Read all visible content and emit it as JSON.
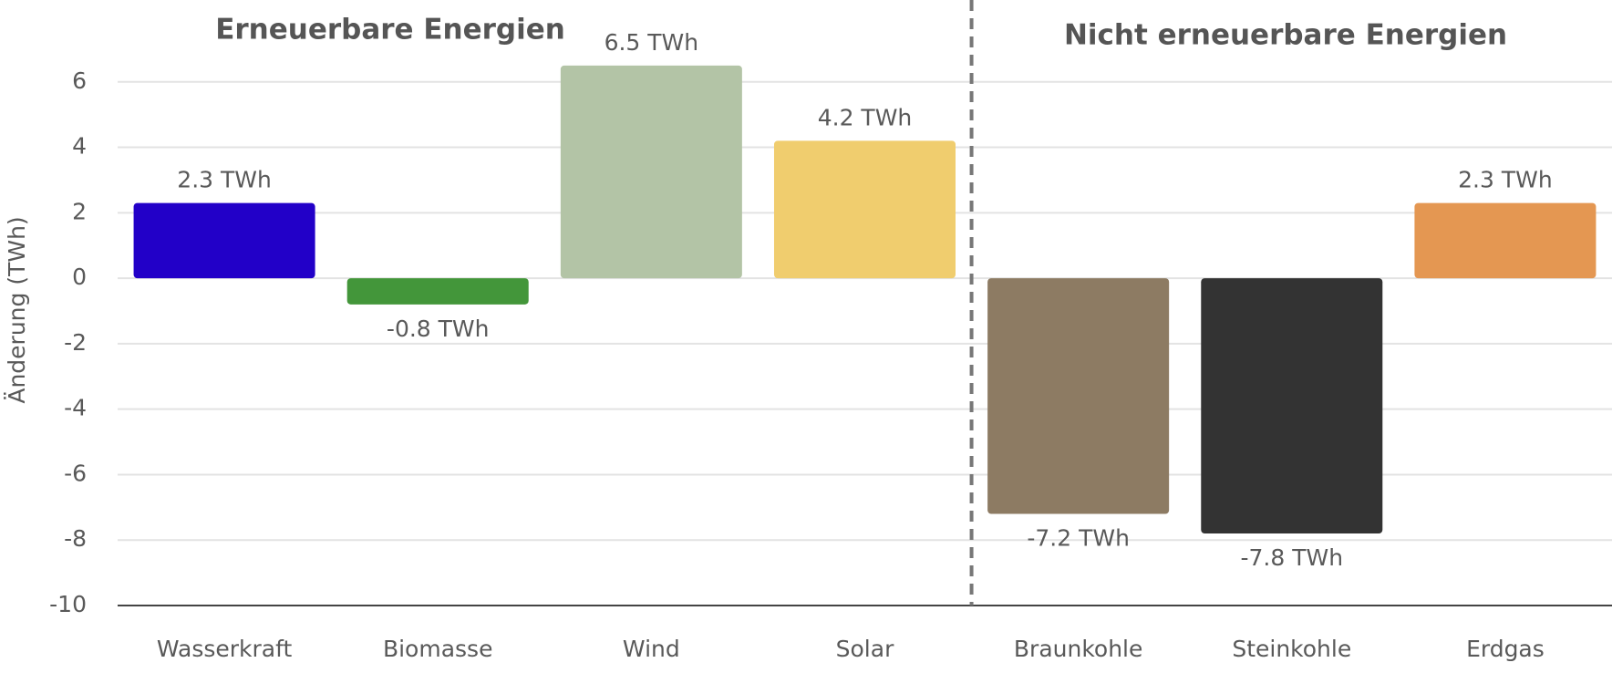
{
  "chart_data": {
    "type": "bar",
    "annotations": [
      "Erneuerbare Energien",
      "Nicht erneuerbare Energien"
    ],
    "y_label": "Änderung (TWh)",
    "categories": [
      "Wasserkraft",
      "Biomasse",
      "Wind",
      "Solar",
      "Braunkohle",
      "Steinkohle",
      "Erdgas"
    ],
    "values": [
      2.3,
      -0.8,
      6.5,
      4.2,
      -7.2,
      -7.8,
      2.3
    ],
    "value_labels": [
      "2.3 TWh",
      "-0.8 TWh",
      "6.5 TWh",
      "4.2 TWh",
      "-7.2 TWh",
      "-7.8 TWh",
      "2.3 TWh"
    ],
    "colors": [
      "#2200c8",
      "#43963a",
      "#b3c4a6",
      "#f0cd6e",
      "#8d7b63",
      "#333333",
      "#e49752"
    ],
    "ylim": [
      -10,
      8
    ],
    "yticks": [
      -10,
      -8,
      -6,
      -4,
      -2,
      0,
      2,
      4,
      6
    ],
    "grid": true
  }
}
